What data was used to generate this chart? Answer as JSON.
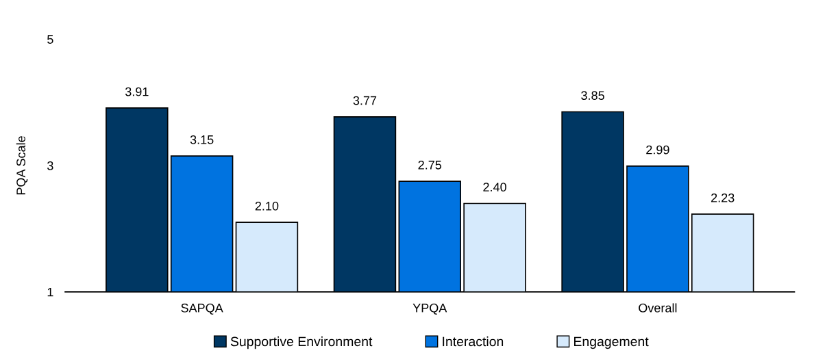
{
  "chart_data": {
    "type": "bar",
    "ylabel": "PQA Scale",
    "categories": [
      "SAPQA",
      "YPQA",
      "Overall"
    ],
    "series": [
      {
        "name": "Supportive Environment",
        "color": "#003763",
        "values": [
          3.91,
          3.77,
          3.85
        ],
        "value_labels": [
          "3.91",
          "3.77",
          "3.85"
        ]
      },
      {
        "name": "Interaction",
        "color": "#0073e0",
        "values": [
          3.15,
          2.75,
          2.99
        ],
        "value_labels": [
          "3.15",
          "2.75",
          "2.99"
        ]
      },
      {
        "name": "Engagement",
        "color": "#d6eafc",
        "values": [
          2.1,
          2.4,
          2.23
        ],
        "value_labels": [
          "2.10",
          "2.40",
          "2.23"
        ]
      }
    ],
    "ylim": [
      1,
      5
    ],
    "yticks": [
      1,
      3,
      5
    ],
    "grid": false,
    "legend": "bottom"
  }
}
